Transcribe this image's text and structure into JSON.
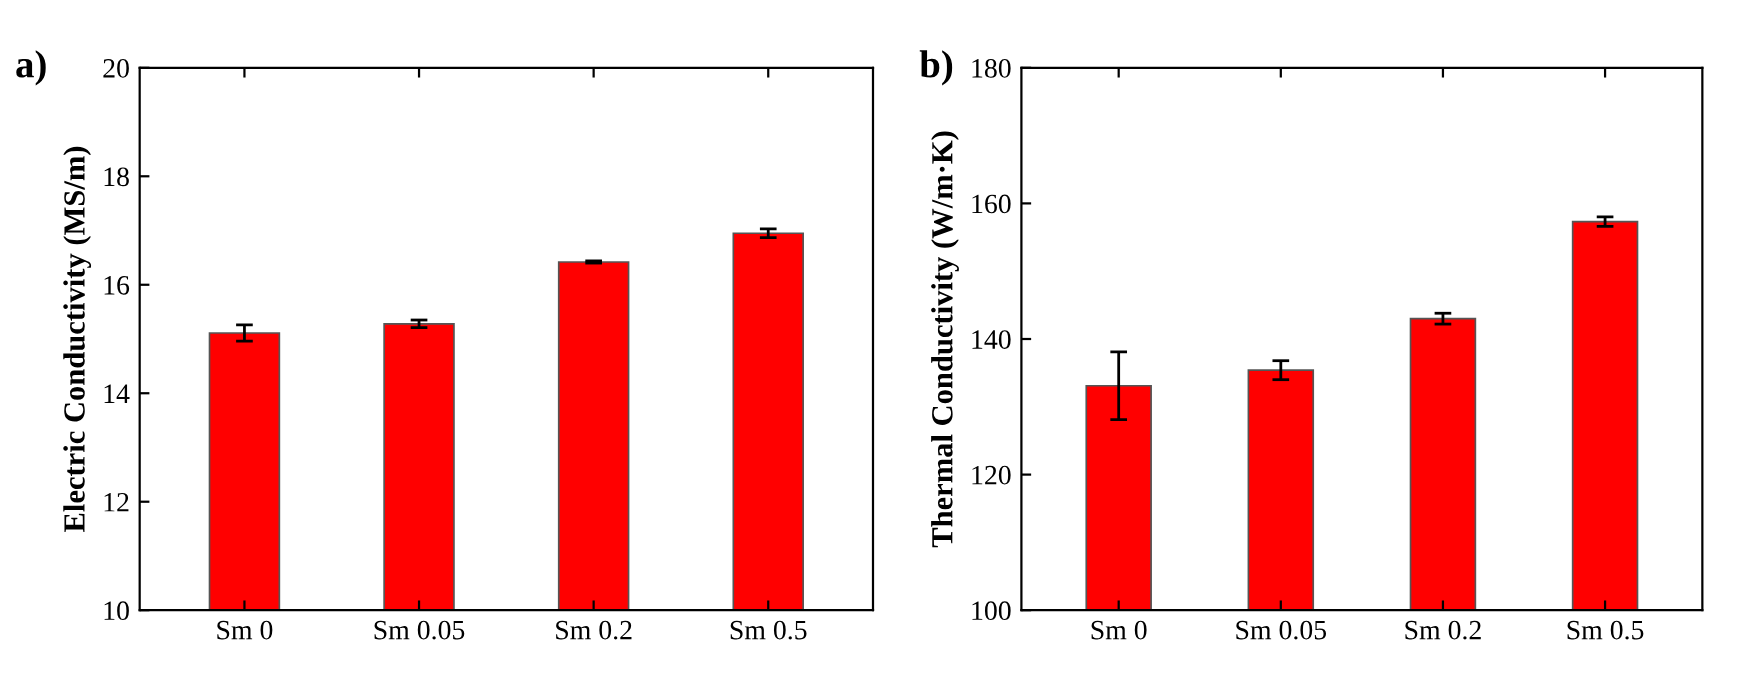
{
  "chart_data": [
    {
      "type": "bar",
      "title": "a)",
      "ylabel": "Electric Conductivity (MS/m)",
      "categories": [
        "Sm 0",
        "Sm 0.05",
        "Sm 0.2",
        "Sm 0.5"
      ],
      "color": "#ff0000",
      "values": [
        15.11,
        15.28,
        16.42,
        16.95
      ],
      "errors": [
        0.15,
        0.07,
        0.02,
        0.08
      ],
      "ylim": [
        10,
        20
      ],
      "yticks": [
        10,
        12,
        14,
        16,
        18,
        20
      ],
      "grid": false
    },
    {
      "type": "bar",
      "title": "b)",
      "ylabel": "Thermal Conductivity (W/m·K)",
      "categories": [
        "Sm 0",
        "Sm 0.05",
        "Sm 0.2",
        "Sm 0.5"
      ],
      "color": "#ff0000",
      "values": [
        133.1,
        135.4,
        143.0,
        157.3
      ],
      "errors": [
        5.0,
        1.4,
        0.8,
        0.7
      ],
      "ylim": [
        100,
        180
      ],
      "yticks": [
        100,
        120,
        140,
        160,
        180
      ],
      "grid": false
    }
  ]
}
